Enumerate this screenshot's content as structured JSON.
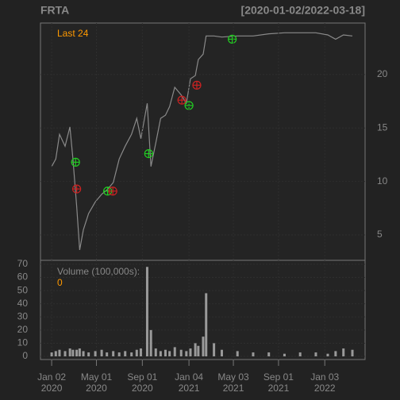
{
  "chart_data": [
    {
      "type": "line",
      "title": "FRTA",
      "subtitle": "[2020-01-02/2022-03-18]",
      "annotation": "Last 24",
      "x": [
        "2020-01-02",
        "2020-01-13",
        "2020-01-23",
        "2020-02-07",
        "2020-02-20",
        "2020-02-28",
        "2020-03-09",
        "2020-03-17",
        "2020-03-27",
        "2020-04-10",
        "2020-04-28",
        "2020-05-15",
        "2020-05-29",
        "2020-06-15",
        "2020-07-01",
        "2020-07-17",
        "2020-08-03",
        "2020-08-17",
        "2020-08-28",
        "2020-09-14",
        "2020-09-24",
        "2020-10-07",
        "2020-10-20",
        "2020-11-02",
        "2020-11-13",
        "2020-11-27",
        "2020-12-14",
        "2020-12-28",
        "2021-01-08",
        "2021-01-21",
        "2021-01-29",
        "2021-02-11",
        "2021-02-19",
        "2021-03-12",
        "2021-04-02",
        "2021-05-14",
        "2021-06-25",
        "2021-08-06",
        "2021-09-17",
        "2021-10-29",
        "2021-12-10",
        "2022-01-11",
        "2022-02-01",
        "2022-02-22",
        "2022-03-18"
      ],
      "series": [
        {
          "color": "#8a8a8a",
          "values": [
            11.4,
            12.1,
            14.4,
            13.3,
            15.1,
            12.1,
            7.7,
            3.6,
            5.5,
            7.0,
            8.1,
            8.8,
            9.2,
            9.9,
            12.1,
            13.3,
            14.4,
            15.9,
            14.0,
            17.3,
            11.4,
            13.6,
            15.9,
            16.2,
            17.0,
            18.8,
            18.1,
            17.3,
            19.6,
            19.9,
            21.4,
            21.9,
            23.6,
            23.6,
            23.5,
            23.6,
            23.6,
            23.8,
            23.9,
            23.9,
            23.9,
            23.7,
            23.3,
            23.7,
            23.6
          ]
        }
      ],
      "buy": {
        "color": "#22cc22",
        "x": [
          "2020-03-06",
          "2020-05-31",
          "2020-09-18",
          "2021-01-04",
          "2021-04-30"
        ],
        "values": [
          11.8,
          9.1,
          12.6,
          17.1,
          23.3
        ]
      },
      "sell": {
        "color": "#cc2222",
        "x": [
          "2020-03-09",
          "2020-06-14",
          "2020-12-16",
          "2021-01-25"
        ],
        "values": [
          9.3,
          9.1,
          17.6,
          19.0
        ]
      },
      "xlim": [
        "2019-12-03",
        "2022-04-21"
      ],
      "ylim": [
        2.63,
        24.81
      ],
      "yticks": [
        5,
        10,
        15,
        20
      ],
      "grid": true
    },
    {
      "type": "bar",
      "title": "Volume (100,000s):",
      "annotation": "0",
      "color": "#9a9a9a",
      "x": [
        "2020-01-02",
        "2020-01-13",
        "2020-01-23",
        "2020-02-07",
        "2020-02-20",
        "2020-02-28",
        "2020-03-09",
        "2020-03-17",
        "2020-03-27",
        "2020-04-10",
        "2020-04-28",
        "2020-05-15",
        "2020-05-29",
        "2020-06-15",
        "2020-07-01",
        "2020-07-17",
        "2020-08-03",
        "2020-08-17",
        "2020-08-28",
        "2020-09-14",
        "2020-09-24",
        "2020-10-07",
        "2020-10-20",
        "2020-11-02",
        "2020-11-13",
        "2020-11-27",
        "2020-12-14",
        "2020-12-28",
        "2021-01-08",
        "2021-01-21",
        "2021-01-29",
        "2021-02-11",
        "2021-02-19",
        "2021-03-12",
        "2021-04-02",
        "2021-05-14",
        "2021-06-25",
        "2021-08-06",
        "2021-09-17",
        "2021-10-29",
        "2021-12-10",
        "2022-01-11",
        "2022-02-01",
        "2022-02-22",
        "2022-03-18"
      ],
      "values": [
        3,
        4,
        5,
        4,
        6,
        5,
        5,
        6,
        4,
        3,
        4,
        5,
        3,
        4,
        3,
        4,
        3,
        5,
        6,
        68,
        20,
        6,
        4,
        5,
        4,
        7,
        5,
        4,
        6,
        10,
        8,
        15,
        48,
        10,
        5,
        4,
        3,
        3,
        2,
        3,
        3,
        2,
        4,
        6,
        5
      ],
      "xlim": [
        "2019-12-03",
        "2022-04-21"
      ],
      "ylim": [
        -2.4,
        73.0
      ],
      "yticks": [
        0,
        10,
        20,
        30,
        40,
        50,
        60,
        70
      ],
      "xticks": [
        {
          "value": "2020-01-02",
          "label": "Jan 02\n2020"
        },
        {
          "value": "2020-05-01",
          "label": "May 01\n2020"
        },
        {
          "value": "2020-09-01",
          "label": "Sep 01\n2020"
        },
        {
          "value": "2021-01-04",
          "label": "Jan 04\n2021"
        },
        {
          "value": "2021-05-03",
          "label": "May 03\n2021"
        },
        {
          "value": "2021-09-01",
          "label": "Sep 01\n2021"
        },
        {
          "value": "2022-01-03",
          "label": "Jan 03\n2022"
        }
      ],
      "grid": true
    }
  ]
}
